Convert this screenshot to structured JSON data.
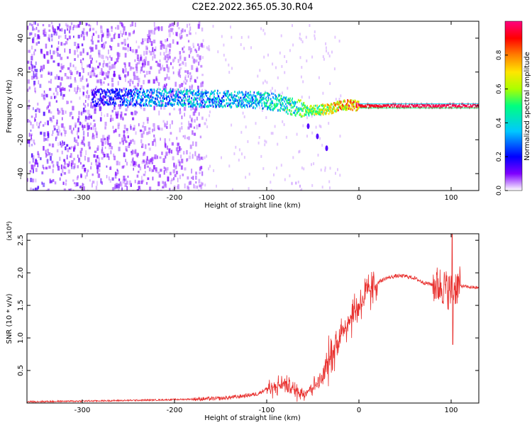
{
  "figure": {
    "title": "C2E2.2022.365.05.30.R04"
  },
  "chart_data": [
    {
      "type": "heatmap",
      "title": "C2E2.2022.365.05.30.R04",
      "xlabel": "Height of straight line (km)",
      "ylabel": "Frequency (Hz)",
      "xlim": [
        -360,
        130
      ],
      "ylim": [
        -50,
        50
      ],
      "xticks": [
        -300,
        -200,
        -100,
        0,
        100
      ],
      "xtick_labels": [
        "-300",
        "-200",
        "-100",
        "0",
        "100"
      ],
      "yticks": [
        -40,
        -20,
        0,
        20,
        40
      ],
      "ytick_labels": [
        "-40",
        "-20",
        "0",
        "20",
        "40"
      ],
      "colorbar": {
        "label": "Normalized spectral amplitude",
        "range": [
          0,
          1
        ],
        "ticks": [
          0,
          0.2,
          0.4,
          0.6,
          0.8
        ],
        "tick_labels": [
          "0.0",
          "0.2",
          "0.4",
          "0.6",
          "0.8"
        ],
        "colormap": [
          "#ffffff",
          "#7f00ff",
          "#0000ff",
          "#00c8ff",
          "#00ff80",
          "#aaff00",
          "#ffe600",
          "#ff7f00",
          "#ff0000",
          "#ff0080"
        ]
      },
      "ridge": {
        "description": "main spectral line",
        "points": [
          {
            "x": -290,
            "y": 5,
            "amp": 0.2
          },
          {
            "x": -220,
            "y": 5,
            "amp": 0.35
          },
          {
            "x": -150,
            "y": 4,
            "amp": 0.35
          },
          {
            "x": -100,
            "y": 3,
            "amp": 0.4
          },
          {
            "x": -75,
            "y": 0,
            "amp": 0.45
          },
          {
            "x": -55,
            "y": -3,
            "amp": 0.55
          },
          {
            "x": -35,
            "y": -2,
            "amp": 0.65
          },
          {
            "x": -15,
            "y": 0.5,
            "amp": 0.8
          },
          {
            "x": 0,
            "y": 0,
            "amp": 0.9
          },
          {
            "x": 50,
            "y": 0,
            "amp": 0.95
          },
          {
            "x": 130,
            "y": 0,
            "amp": 0.95
          }
        ],
        "secondary_branch": [
          {
            "x": -55,
            "y": -12
          },
          {
            "x": -45,
            "y": -18
          },
          {
            "x": -35,
            "y": -25
          }
        ]
      },
      "noise_region": {
        "x_from": -360,
        "x_to": -170,
        "amp": 0.15
      }
    },
    {
      "type": "line",
      "xlabel": "Height of straight line (km)",
      "ylabel": "SNR (10 * v/v)",
      "y_multiplier": "(x10⁴)",
      "xlim": [
        -360,
        130
      ],
      "ylim": [
        0,
        2.6
      ],
      "xticks": [
        -300,
        -200,
        -100,
        0,
        100
      ],
      "xtick_labels": [
        "-300",
        "-200",
        "-100",
        "0",
        "100"
      ],
      "yticks": [
        0.5,
        1.0,
        1.5,
        2.0,
        2.5
      ],
      "ytick_labels": [
        "0.5",
        "1.0",
        "1.5",
        "2.0",
        "2.5"
      ],
      "color": "#e8302e",
      "series": [
        {
          "name": "SNR",
          "x": [
            -360,
            -300,
            -250,
            -210,
            -180,
            -150,
            -130,
            -110,
            -100,
            -90,
            -80,
            -70,
            -60,
            -50,
            -40,
            -30,
            -20,
            -10,
            0,
            10,
            20,
            30,
            40,
            50,
            60,
            70,
            80,
            90,
            95,
            100,
            102,
            110,
            120,
            130
          ],
          "y": [
            0.02,
            0.03,
            0.04,
            0.05,
            0.06,
            0.07,
            0.1,
            0.14,
            0.22,
            0.25,
            0.3,
            0.2,
            0.15,
            0.25,
            0.35,
            0.75,
            1.05,
            1.3,
            1.5,
            1.7,
            1.85,
            1.92,
            1.95,
            1.95,
            1.92,
            1.85,
            1.82,
            1.8,
            1.75,
            1.7,
            1.78,
            1.8,
            1.78,
            1.77
          ]
        }
      ],
      "noise_amplitude": [
        {
          "x_from": -360,
          "x_to": -180,
          "amp": 0.02
        },
        {
          "x_from": -180,
          "x_to": -100,
          "amp": 0.05
        },
        {
          "x_from": -100,
          "x_to": -40,
          "amp": 0.2
        },
        {
          "x_from": -40,
          "x_to": 20,
          "amp": 0.45
        },
        {
          "x_from": 20,
          "x_to": 80,
          "amp": 0.05
        },
        {
          "x_from": 80,
          "x_to": 110,
          "amp": 0.5
        },
        {
          "x_from": 110,
          "x_to": 130,
          "amp": 0.04
        }
      ],
      "spikes": [
        {
          "x": 101,
          "y": 2.6
        },
        {
          "x": 102,
          "y": 0.9
        }
      ]
    }
  ]
}
